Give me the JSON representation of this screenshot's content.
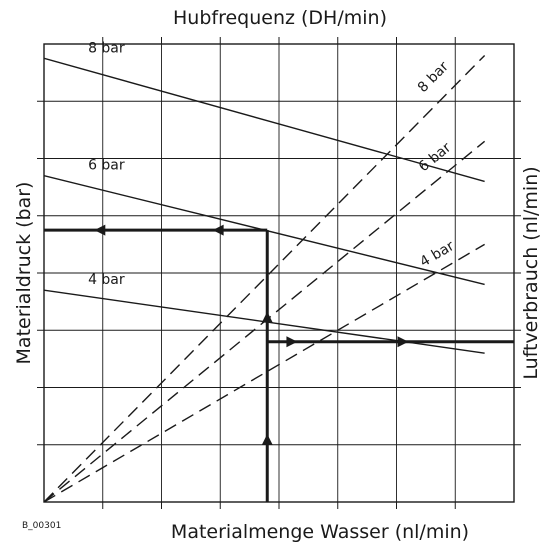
{
  "chart_data": {
    "type": "line",
    "title": "Hubfrequenz (DH/min)",
    "xlabel": "Materialmenge Wasser (nl/min)",
    "ylabel": "Materialdruck (bar)",
    "y2label": "Luftverbrauch (nl/min)",
    "figure_id": "B_00301",
    "grid": true,
    "x_divisions": 8,
    "y_divisions": 8,
    "xlim": [
      0,
      8
    ],
    "ylim": [
      0,
      8
    ],
    "series": [
      {
        "name": "8 bar",
        "style": "solid",
        "x": [
          0,
          7.5
        ],
        "y": [
          7.75,
          5.6
        ]
      },
      {
        "name": "6 bar",
        "style": "solid",
        "x": [
          0,
          7.5
        ],
        "y": [
          5.7,
          3.8
        ]
      },
      {
        "name": "4 bar",
        "style": "solid",
        "x": [
          0,
          7.5
        ],
        "y": [
          3.7,
          2.6
        ]
      },
      {
        "name": "8 bar",
        "style": "dashed",
        "x": [
          0,
          7.5
        ],
        "y": [
          0,
          7.8
        ]
      },
      {
        "name": "6 bar",
        "style": "dashed",
        "x": [
          0,
          7.5
        ],
        "y": [
          0,
          6.3
        ]
      },
      {
        "name": "4 bar",
        "style": "dashed",
        "x": [
          0,
          7.5
        ],
        "y": [
          0,
          4.5
        ]
      }
    ],
    "reading_path": [
      {
        "from": [
          3.8,
          0
        ],
        "to": [
          3.8,
          4.75
        ],
        "arrows": "up"
      },
      {
        "from": [
          3.8,
          4.75
        ],
        "to": [
          0,
          4.75
        ],
        "arrows": "left"
      },
      {
        "from": [
          3.8,
          2.8
        ],
        "to": [
          8,
          2.8
        ],
        "arrows": "right"
      }
    ]
  }
}
